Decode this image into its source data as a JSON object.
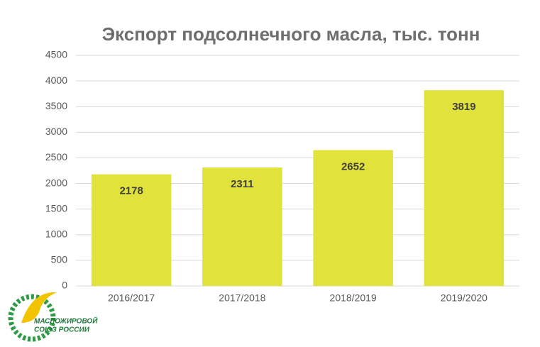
{
  "chart_data": {
    "type": "bar",
    "title": "Экспорт подсолнечного масла, тыс. тонн",
    "categories": [
      "2016/2017",
      "2017/2018",
      "2018/2019",
      "2019/2020"
    ],
    "values": [
      2178,
      2311,
      2652,
      3819
    ],
    "color": "#e1e23c",
    "ylim": [
      0,
      4500
    ],
    "yticks": [
      0,
      500,
      1000,
      1500,
      2000,
      2500,
      3000,
      3500,
      4000,
      4500
    ],
    "grid": true
  },
  "logo": {
    "line1": "МАСЛОЖИРОВОЙ",
    "line2": "СОЮЗ РОССИИ"
  }
}
